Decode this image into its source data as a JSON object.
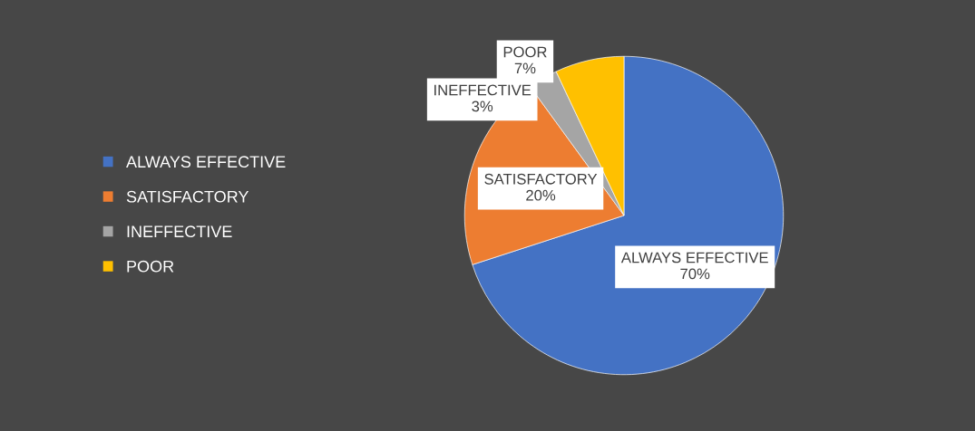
{
  "chart_data": {
    "type": "pie",
    "categories": [
      "ALWAYS EFFECTIVE",
      "SATISFACTORY",
      "INEFFECTIVE",
      "POOR"
    ],
    "values": [
      70,
      20,
      3,
      7
    ],
    "colors": [
      "#4472c4",
      "#ed7d31",
      "#a5a5a5",
      "#ffc000"
    ],
    "value_labels": [
      "70%",
      "20%",
      "3%",
      "7%"
    ],
    "legend": "left"
  }
}
